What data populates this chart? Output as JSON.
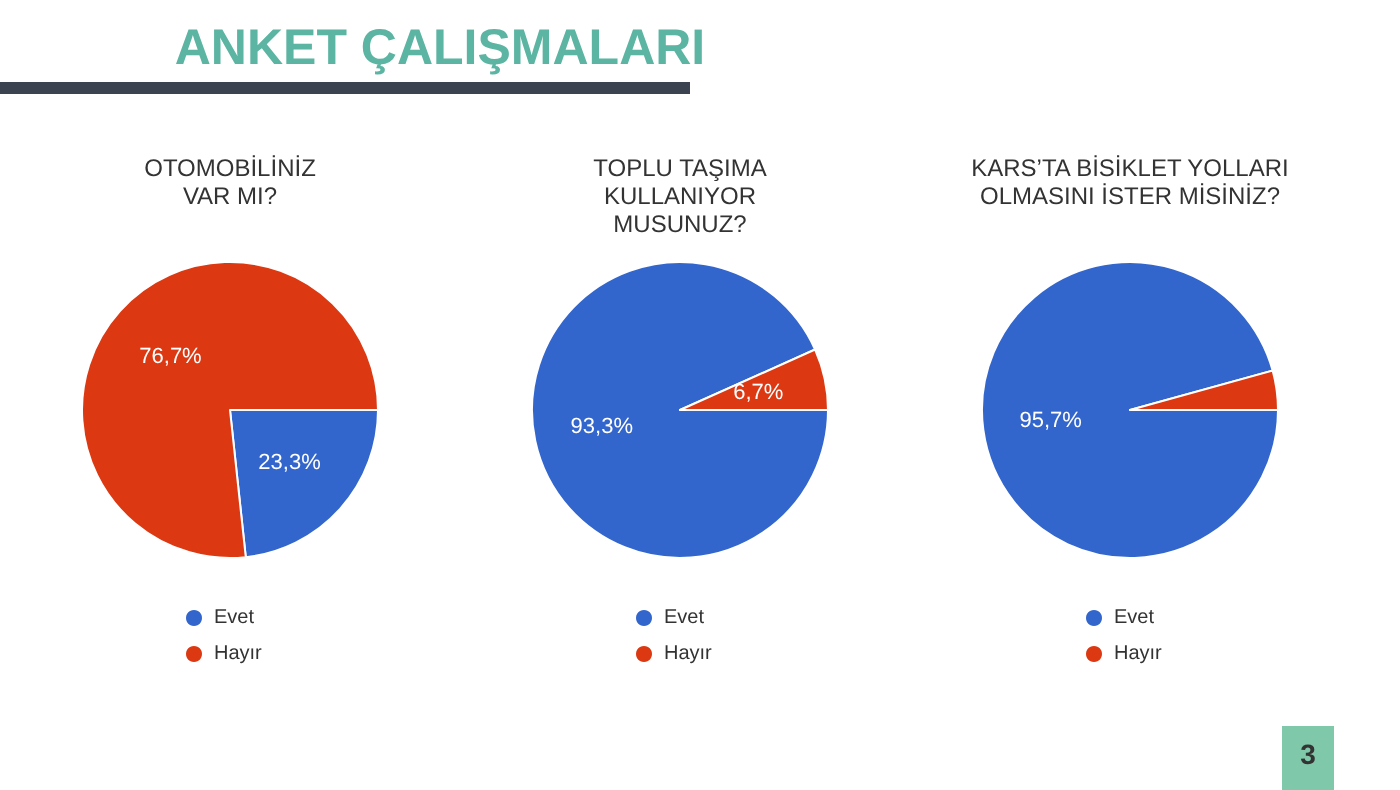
{
  "chart_data": [
    {
      "type": "pie",
      "title": "OTOMOBİLİNİZ\nVAR MI?",
      "categories": [
        "Evet",
        "Hayır"
      ],
      "values": [
        23.3,
        76.7
      ],
      "colors": [
        "#3366cc",
        "#dc3912"
      ],
      "value_labels": [
        "23,3%",
        "76,7%"
      ],
      "legend": "bottom",
      "annotations": [
        "ANKET ÇALIŞMALARI"
      ]
    },
    {
      "type": "pie",
      "title": "TOPLU TAŞIMA\nKULLANIYOR\nMUSUNUZ?",
      "categories": [
        "Evet",
        "Hayır"
      ],
      "values": [
        93.3,
        6.7
      ],
      "colors": [
        "#3366cc",
        "#dc3912"
      ],
      "value_labels": [
        "93,3%",
        "6,7%"
      ],
      "legend": "bottom"
    },
    {
      "type": "pie",
      "title": "KARS’TA BİSİKLET YOLLARI\nOLMASINI İSTER MİSİNİZ?",
      "categories": [
        "Evet",
        "Hayır"
      ],
      "values": [
        95.7,
        4.3
      ],
      "colors": [
        "#3366cc",
        "#dc3912"
      ],
      "value_labels": [
        "95,7%",
        null
      ],
      "legend": "bottom",
      "annotations": [
        "3"
      ]
    }
  ]
}
